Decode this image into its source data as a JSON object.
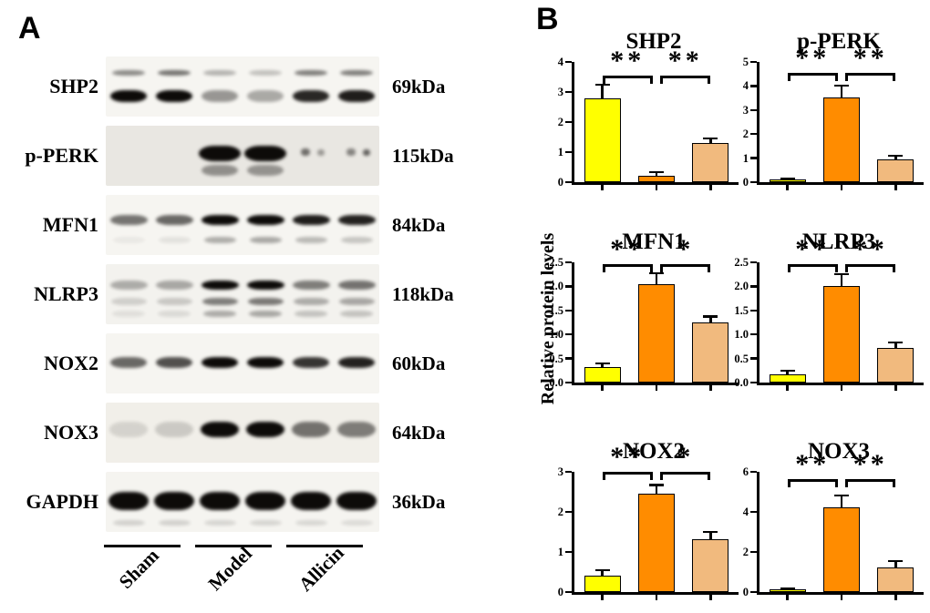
{
  "figure": {
    "panel_a_label": "A",
    "panel_b_label": "B",
    "y_axis_label": "Relative protein levels"
  },
  "bar_colors": [
    "#FFFF00",
    "#FF8C00",
    "#F1BA7E"
  ],
  "band_color": "#0d0b09",
  "blots": {
    "groups": [
      "Sham",
      "Model",
      "Allicin"
    ],
    "rows": [
      {
        "protein": "SHP2",
        "kda": "69kDa",
        "bg": "#f6f5f1",
        "bands": [
          {
            "y": 27,
            "h": 6,
            "w": 0.72,
            "dx": 0,
            "intensities": [
              0.45,
              0.55,
              0.28,
              0.22,
              0.5,
              0.5
            ]
          },
          {
            "y": 66,
            "h": 13,
            "w": 0.8,
            "dx": 0,
            "intensities": [
              1,
              1,
              0.4,
              0.32,
              0.88,
              0.92
            ]
          }
        ]
      },
      {
        "protein": "p-PERK",
        "kda": "115kDa",
        "bg": "#e9e7e2",
        "bands": [
          {
            "y": 46,
            "h": 17,
            "w": 0.92,
            "dx": 0,
            "intensities": [
              0,
              0,
              1,
              1,
              0,
              0
            ]
          },
          {
            "y": 74,
            "h": 12,
            "w": 0.8,
            "dx": 0,
            "intensities": [
              0,
              0,
              0.4,
              0.38,
              0,
              0
            ]
          },
          {
            "y": 44,
            "h": 8,
            "w": 0.2,
            "dx": -0.12,
            "intensities": [
              0,
              0,
              0,
              0,
              0.55,
              0.45
            ]
          },
          {
            "y": 44,
            "h": 7,
            "w": 0.16,
            "dx": 0.22,
            "intensities": [
              0,
              0,
              0,
              0,
              0.35,
              0.6
            ]
          }
        ]
      },
      {
        "protein": "MFN1",
        "kda": "84kDa",
        "bg": "#f6f5f1",
        "bands": [
          {
            "y": 42,
            "h": 11,
            "w": 0.82,
            "dx": 0,
            "intensities": [
              0.55,
              0.6,
              1,
              1,
              0.92,
              0.9
            ]
          },
          {
            "y": 75,
            "h": 7,
            "w": 0.7,
            "dx": 0,
            "intensities": [
              0.05,
              0.08,
              0.3,
              0.32,
              0.25,
              0.2
            ]
          }
        ]
      },
      {
        "protein": "NLRP3",
        "kda": "118kDa",
        "bg": "#f3f2ee",
        "bands": [
          {
            "y": 35,
            "h": 10,
            "w": 0.82,
            "dx": 0,
            "intensities": [
              0.3,
              0.32,
              1,
              1,
              0.5,
              0.55
            ]
          },
          {
            "y": 62,
            "h": 8,
            "w": 0.78,
            "dx": 0,
            "intensities": [
              0.15,
              0.18,
              0.5,
              0.52,
              0.3,
              0.32
            ]
          },
          {
            "y": 82,
            "h": 7,
            "w": 0.72,
            "dx": 0,
            "intensities": [
              0.08,
              0.1,
              0.3,
              0.32,
              0.2,
              0.2
            ]
          }
        ]
      },
      {
        "protein": "NOX2",
        "kda": "60kDa",
        "bg": "#f6f5f1",
        "bands": [
          {
            "y": 48,
            "h": 12,
            "w": 0.8,
            "dx": 0,
            "intensities": [
              0.6,
              0.7,
              1,
              1,
              0.82,
              0.9
            ]
          }
        ]
      },
      {
        "protein": "NOX3",
        "kda": "64kDa",
        "bg": "#f1efe9",
        "bands": [
          {
            "y": 45,
            "h": 17,
            "w": 0.85,
            "dx": 0,
            "intensities": [
              0.12,
              0.16,
              1,
              1,
              0.55,
              0.5
            ]
          }
        ]
      },
      {
        "protein": "GAPDH",
        "kda": "36kDa",
        "bg": "#f5f4f0",
        "bands": [
          {
            "y": 48,
            "h": 20,
            "w": 0.88,
            "dx": 0,
            "intensities": [
              1,
              1,
              1,
              1,
              1,
              1
            ]
          },
          {
            "y": 85,
            "h": 6,
            "w": 0.7,
            "dx": 0,
            "intensities": [
              0.15,
              0.15,
              0.13,
              0.13,
              0.12,
              0.1
            ]
          }
        ]
      }
    ]
  },
  "chart_data": [
    {
      "type": "bar",
      "title": "SHP2",
      "ylim": [
        0,
        4
      ],
      "ymax": 4,
      "yticks": [
        "0",
        "1",
        "2",
        "3",
        "4"
      ],
      "categories": [
        "Sham",
        "Model",
        "Allicin"
      ],
      "values": [
        2.78,
        0.22,
        1.3
      ],
      "errors": [
        0.45,
        0.1,
        0.15
      ],
      "significance": [
        {
          "between": [
            "Sham",
            "Model"
          ],
          "label": "**"
        },
        {
          "between": [
            "Model",
            "Allicin"
          ],
          "label": "**"
        }
      ],
      "bracket_offset": 15,
      "grid": false,
      "legend": "none"
    },
    {
      "type": "bar",
      "title": "p-PERK",
      "ylim": [
        0,
        5
      ],
      "ymax": 5,
      "yticks": [
        "0",
        "1",
        "2",
        "3",
        "4",
        "5"
      ],
      "categories": [
        "Sham",
        "Model",
        "Allicin"
      ],
      "values": [
        0.1,
        3.52,
        0.95
      ],
      "errors": [
        0.05,
        0.48,
        0.15
      ],
      "significance": [
        {
          "between": [
            "Sham",
            "Model"
          ],
          "label": "**"
        },
        {
          "between": [
            "Model",
            "Allicin"
          ],
          "label": "**"
        }
      ],
      "bracket_offset": 12,
      "grid": false,
      "legend": "none"
    },
    {
      "type": "bar",
      "title": "MFN1",
      "ylim": [
        0,
        2.5
      ],
      "ymax": 2.5,
      "yticks": [
        "0.0",
        "0.5",
        "1.0",
        "1.5",
        "2.0",
        "2.5"
      ],
      "categories": [
        "Sham",
        "Model",
        "Allicin"
      ],
      "values": [
        0.32,
        2.05,
        1.25
      ],
      "errors": [
        0.08,
        0.22,
        0.12
      ],
      "significance": [
        {
          "between": [
            "Sham",
            "Model"
          ],
          "label": "**"
        },
        {
          "between": [
            "Model",
            "Allicin"
          ],
          "label": "*"
        }
      ],
      "bracket_offset": 2,
      "grid": false,
      "legend": "none"
    },
    {
      "type": "bar",
      "title": "NLRP3",
      "ylim": [
        0,
        2.5
      ],
      "ymax": 2.5,
      "yticks": [
        "0.0",
        "0.5",
        "1.0",
        "1.5",
        "2.0",
        "2.5"
      ],
      "categories": [
        "Sham",
        "Model",
        "Allicin"
      ],
      "values": [
        0.17,
        2.0,
        0.72
      ],
      "errors": [
        0.07,
        0.25,
        0.11
      ],
      "significance": [
        {
          "between": [
            "Sham",
            "Model"
          ],
          "label": "**"
        },
        {
          "between": [
            "Model",
            "Allicin"
          ],
          "label": "**"
        }
      ],
      "bracket_offset": 2,
      "grid": false,
      "legend": "none"
    },
    {
      "type": "bar",
      "title": "NOX2",
      "ylim": [
        0,
        3
      ],
      "ymax": 3,
      "yticks": [
        "0",
        "1",
        "2",
        "3"
      ],
      "categories": [
        "Sham",
        "Model",
        "Allicin"
      ],
      "values": [
        0.42,
        2.45,
        1.32
      ],
      "errors": [
        0.12,
        0.22,
        0.18
      ],
      "significance": [
        {
          "between": [
            "Sham",
            "Model"
          ],
          "label": "**"
        },
        {
          "between": [
            "Model",
            "Allicin"
          ],
          "label": "*"
        }
      ],
      "bracket_offset": 0,
      "grid": false,
      "legend": "none"
    },
    {
      "type": "bar",
      "title": "NOX3",
      "ylim": [
        0,
        6
      ],
      "ymax": 6,
      "yticks": [
        "0",
        "2",
        "4",
        "6"
      ],
      "categories": [
        "Sham",
        "Model",
        "Allicin"
      ],
      "values": [
        0.13,
        4.25,
        1.25
      ],
      "errors": [
        0.05,
        0.55,
        0.3
      ],
      "significance": [
        {
          "between": [
            "Sham",
            "Model"
          ],
          "label": "**"
        },
        {
          "between": [
            "Model",
            "Allicin"
          ],
          "label": "**"
        }
      ],
      "bracket_offset": 8,
      "grid": false,
      "legend": "none"
    }
  ]
}
